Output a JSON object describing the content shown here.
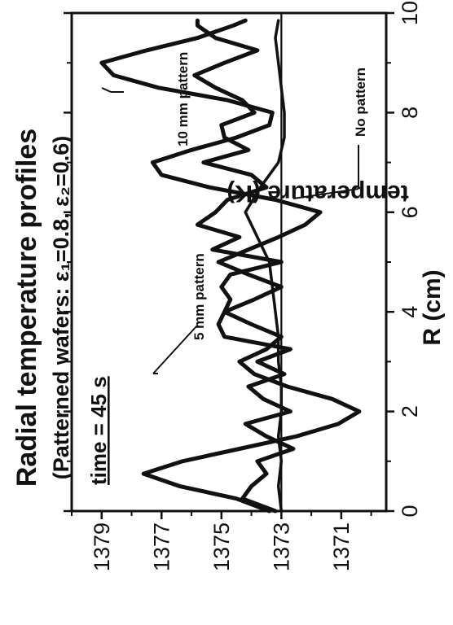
{
  "chart_data": {
    "type": "line",
    "title": "Radial temperature profiles",
    "subtitle": "(Patterned wafers: ε₁=0.8, ε₂=0.6)",
    "xlabel": "R (cm)",
    "ylabel": "temperature (K)",
    "xlim": [
      0,
      10
    ],
    "ylim": [
      1369.5,
      1380
    ],
    "x_ticks": [
      "0",
      "2",
      "4",
      "6",
      "8",
      "10"
    ],
    "y_ticks": [
      "1371",
      "1373",
      "1375",
      "1377",
      "1379"
    ],
    "reference_line": 1373,
    "time_label": "time = 45 s",
    "annotations": {
      "pattern_10mm": "10 mm pattern",
      "pattern_5mm": "5 mm pattern",
      "no_pattern": "No pattern"
    },
    "series": [
      {
        "name": "10 mm pattern",
        "x": [
          0,
          0.25,
          0.5,
          0.75,
          1.0,
          1.25,
          1.5,
          1.75,
          2.0,
          2.25,
          2.5,
          2.75,
          3.0,
          3.25,
          3.5,
          3.75,
          4.0,
          4.25,
          4.5,
          4.75,
          5.0,
          5.25,
          5.5,
          5.75,
          6.0,
          6.25,
          6.5,
          6.75,
          7.0,
          7.25,
          7.5,
          7.75,
          8.0,
          8.25,
          8.5,
          8.75,
          9.0,
          9.25,
          9.5,
          9.75,
          9.85
        ],
        "y": [
          1373.4,
          1374.5,
          1376.4,
          1377.6,
          1376.3,
          1374.4,
          1372.5,
          1371.1,
          1370.4,
          1371.3,
          1372.8,
          1373.9,
          1374.4,
          1373.5,
          1373.0,
          1374.0,
          1374.9,
          1373.9,
          1373.0,
          1374.1,
          1375.1,
          1374.1,
          1373.1,
          1372.2,
          1371.7,
          1373.2,
          1375.4,
          1377.0,
          1377.3,
          1376.0,
          1374.5,
          1373.4,
          1373.3,
          1374.8,
          1377.1,
          1378.6,
          1379.0,
          1377.5,
          1375.8,
          1374.6,
          1374.2
        ]
      },
      {
        "name": "5 mm pattern",
        "x": [
          0,
          0.25,
          0.5,
          0.75,
          1.0,
          1.25,
          1.5,
          1.75,
          2.0,
          2.25,
          2.5,
          2.75,
          3.0,
          3.25,
          3.5,
          3.75,
          4.0,
          4.25,
          4.5,
          4.75,
          5.0,
          5.25,
          5.5,
          5.75,
          6.0,
          6.25,
          6.5,
          6.75,
          7.0,
          7.25,
          7.5,
          7.75,
          8.0,
          8.25,
          8.5,
          8.75,
          9.0,
          9.25,
          9.5,
          9.75,
          9.85
        ],
        "y": [
          1373.2,
          1374.3,
          1374.0,
          1373.5,
          1373.8,
          1372.6,
          1373.5,
          1374.2,
          1372.7,
          1373.6,
          1374.1,
          1372.9,
          1373.8,
          1372.7,
          1374.9,
          1375.1,
          1374.9,
          1374.7,
          1375.0,
          1374.7,
          1373.0,
          1375.3,
          1374.4,
          1375.8,
          1375.2,
          1374.8,
          1373.5,
          1374.0,
          1375.6,
          1374.1,
          1374.9,
          1375.0,
          1373.9,
          1374.3,
          1375.2,
          1375.9,
          1374.9,
          1373.8,
          1375.2,
          1375.8,
          1375.8
        ]
      },
      {
        "name": "No pattern",
        "x": [
          0,
          0.5,
          1.0,
          1.5,
          2.0,
          2.5,
          3.0,
          3.5,
          4.0,
          4.5,
          5.0,
          5.5,
          6.0,
          6.5,
          7.0,
          7.5,
          8.0,
          8.5,
          9.0,
          9.5,
          9.85
        ],
        "y": [
          1373.0,
          1373.1,
          1373.0,
          1373.1,
          1373.0,
          1373.0,
          1373.1,
          1373.1,
          1373.2,
          1373.3,
          1373.4,
          1373.8,
          1374.2,
          1373.7,
          1373.1,
          1372.9,
          1372.9,
          1373.0,
          1373.1,
          1373.2,
          1373.1
        ]
      }
    ]
  }
}
